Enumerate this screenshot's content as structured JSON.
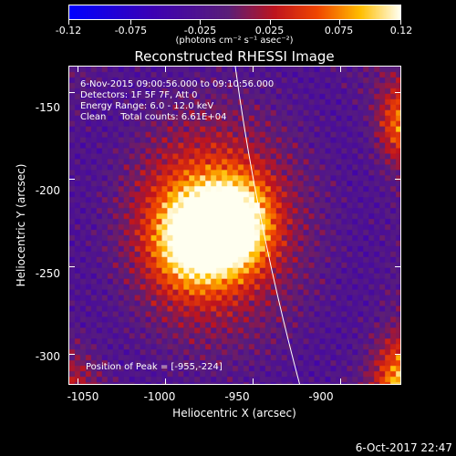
{
  "colorbar": {
    "tick_labels": [
      "-0.12",
      "-0.075",
      "-0.025",
      "0.025",
      "0.075",
      "0.12"
    ],
    "units_label": "(photons cm⁻² s⁻¹ asec⁻²)",
    "range": [
      -0.12,
      0.12
    ]
  },
  "plot": {
    "title": "Reconstructed RHESSI Image",
    "x_axis_label": "Heliocentric X (arcsec)",
    "y_axis_label": "Heliocentric Y (arcsec)",
    "x_tick_labels": [
      "-1050",
      "-1000",
      "-950",
      "-900"
    ],
    "y_tick_labels": [
      "-150",
      "-200",
      "-250",
      "-300"
    ],
    "x_range": [
      -1055,
      -865
    ],
    "y_range": [
      -318,
      -135
    ]
  },
  "info": {
    "time_range": "6-Nov-2015 09:00:56.000 to 09:10:56.000",
    "detectors": "Detectors: 1F 5F 7F, Att 0",
    "energy_range": "Energy Range: 6.0 - 12.0 keV",
    "clean_counts": "Clean     Total counts: 6.61E+04",
    "peak_position": "Position of Peak = [-955,-224]"
  },
  "footer": {
    "date": "6-Oct-2017 22:47"
  },
  "colors": {
    "background": "#000000",
    "axes": "#ffffff",
    "limb": "#ffffff"
  }
}
